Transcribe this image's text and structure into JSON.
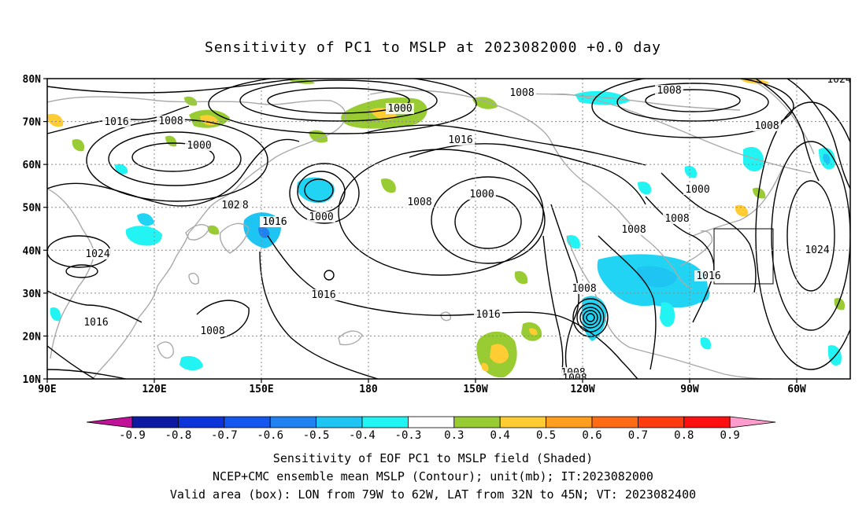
{
  "title": "Sensitivity of PC1 to MSLP at 2023082000 +0.0 day",
  "map": {
    "lat_labels": [
      "80N",
      "70N",
      "60N",
      "50N",
      "40N",
      "30N",
      "20N",
      "10N"
    ],
    "lon_labels": [
      "90E",
      "120E",
      "150E",
      "180",
      "150W",
      "120W",
      "90W",
      "60W"
    ],
    "valid_box": {
      "lon_from": "79W",
      "lon_to": "62W",
      "lat_from": "32N",
      "lat_to": "45N"
    },
    "contour_labels": [
      "1016",
      "1008",
      "1000",
      "1000",
      "1008",
      "1016",
      "1008",
      "1000",
      "1008",
      "1000",
      "1008",
      "1000",
      "1008",
      "1024",
      "1024",
      "1016",
      "1008",
      "1016",
      "1016",
      "1016",
      "1024",
      "1008",
      "1008",
      "1016",
      "1008",
      "1008",
      "1008",
      "1016",
      "102"
    ],
    "projection": "cylindrical equidistant, 90E to 50W, 10N to 80N",
    "contour_interval": 8,
    "contour_unit": "mb"
  },
  "colorbar": {
    "labels": [
      "-0.9",
      "-0.8",
      "-0.7",
      "-0.6",
      "-0.5",
      "-0.4",
      "-0.3",
      "0.3",
      "0.4",
      "0.5",
      "0.6",
      "0.7",
      "0.8",
      "0.9"
    ],
    "colors": [
      "#c0139a",
      "#0b1aa0",
      "#0c34d8",
      "#1457f0",
      "#1f82f0",
      "#1ec4f2",
      "#22f4f4",
      "#ffffff",
      "#99cc33",
      "#ffcc33",
      "#ff9e1f",
      "#ff6a14",
      "#ff3b10",
      "#ff1010",
      "#ff9ccd"
    ]
  },
  "captions": {
    "line1": "Sensitivity of EOF PC1 to MSLP field (Shaded)",
    "line2": "NCEP+CMC ensemble mean MSLP (Contour); unit(mb); IT:2023082000",
    "line3": "Valid area (box): LON from 79W to 62W, LAT from 32N to 45N; VT: 2023082400"
  }
}
